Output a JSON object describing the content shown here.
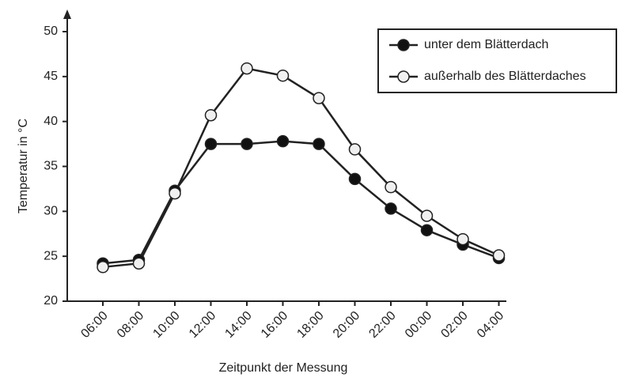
{
  "chart_data": {
    "type": "line",
    "x_label": "Zeitpunkt der Messung",
    "y_label": "Temperatur in °C",
    "categories": [
      "06:00",
      "08:00",
      "10:00",
      "12:00",
      "14:00",
      "16:00",
      "18:00",
      "20:00",
      "22:00",
      "00:00",
      "02:00",
      "04:00"
    ],
    "series": [
      {
        "name": "unter dem Blätterdach",
        "color": "#111111",
        "marker": "filled",
        "values": [
          24.2,
          24.6,
          32.3,
          37.5,
          37.5,
          37.8,
          37.5,
          33.6,
          30.3,
          27.9,
          26.3,
          24.8
        ]
      },
      {
        "name": "außerhalb des Blätterdaches",
        "color": "#f0f0f0",
        "marker": "open",
        "values": [
          23.8,
          24.2,
          32.0,
          40.7,
          45.9,
          45.1,
          42.6,
          36.9,
          32.7,
          29.5,
          26.9,
          25.1
        ]
      }
    ],
    "ylim": [
      20,
      50
    ],
    "yticks": [
      20,
      25,
      30,
      35,
      40,
      45,
      50
    ],
    "grid": false,
    "legend": "upper right"
  }
}
